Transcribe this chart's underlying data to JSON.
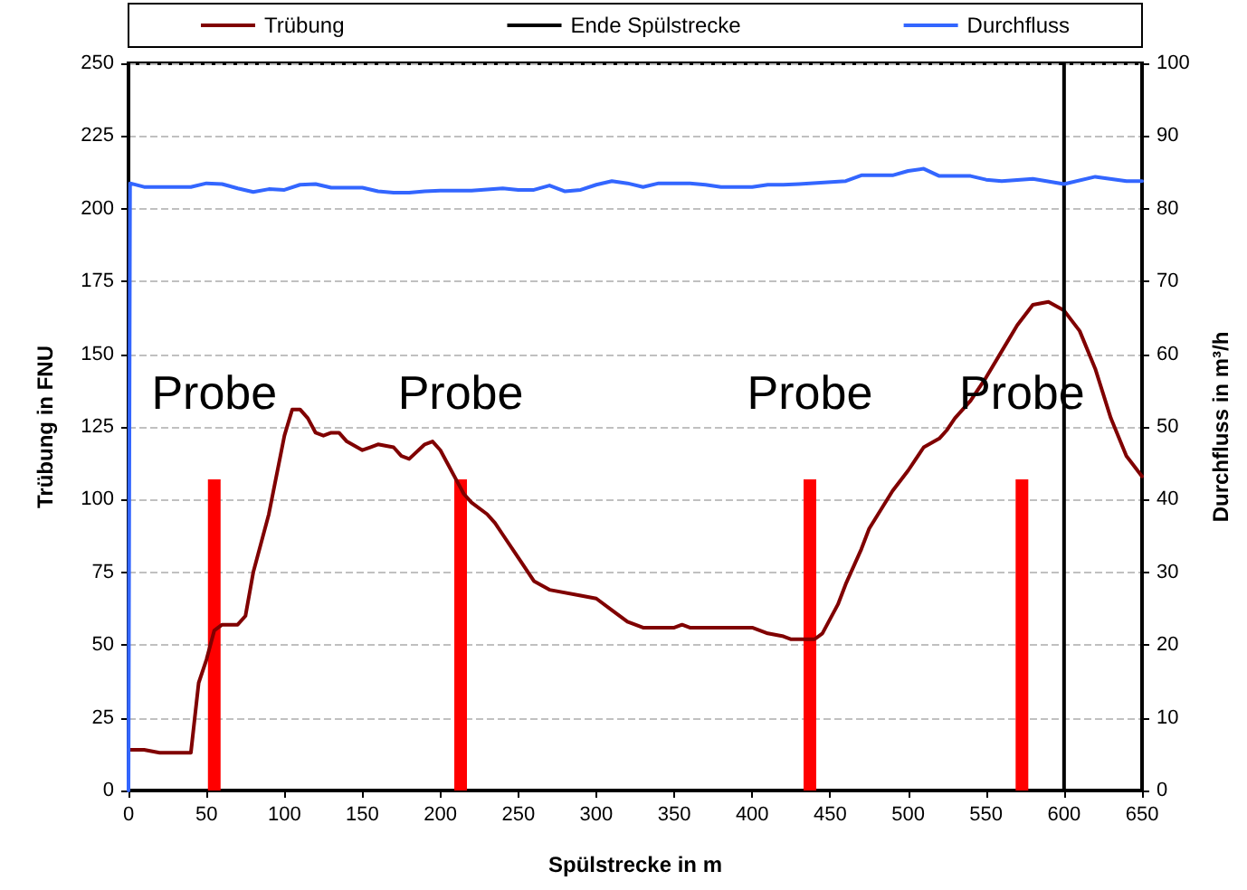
{
  "chart_data": {
    "type": "line",
    "xlabel": "Spülstrecke in m",
    "ylabel": "Trübung in FNU",
    "y2label": "Durchfluss in m³/h",
    "xlim": [
      0,
      650
    ],
    "xticks": [
      0,
      50,
      100,
      150,
      200,
      250,
      300,
      350,
      400,
      450,
      500,
      550,
      600,
      650
    ],
    "ylim": [
      0,
      250
    ],
    "yticks": [
      0,
      25,
      50,
      75,
      100,
      125,
      150,
      175,
      200,
      225,
      250
    ],
    "y2lim": [
      0,
      100
    ],
    "y2ticks": [
      0,
      10,
      20,
      30,
      40,
      50,
      60,
      70,
      80,
      90,
      100
    ],
    "grid": "y",
    "legend": "top",
    "marker": "none",
    "line_style": "solid",
    "series": [
      {
        "name": "Trübung",
        "color": "#800000",
        "x": [
          0,
          10,
          20,
          40,
          45,
          50,
          55,
          60,
          70,
          75,
          80,
          90,
          100,
          105,
          110,
          115,
          120,
          125,
          130,
          135,
          140,
          150,
          155,
          160,
          170,
          175,
          180,
          190,
          195,
          200,
          205,
          210,
          215,
          220,
          230,
          235,
          240,
          250,
          260,
          270,
          290,
          300,
          310,
          320,
          330,
          350,
          355,
          360,
          400,
          410,
          420,
          425,
          430,
          440,
          445,
          455,
          460,
          470,
          475,
          490,
          500,
          510,
          520,
          525,
          530,
          540,
          550,
          560,
          570,
          580,
          590,
          600,
          610,
          620,
          630,
          640,
          650
        ],
        "values": [
          14,
          14,
          13,
          13,
          37,
          45,
          55,
          57,
          57,
          60,
          75,
          95,
          122,
          131,
          131,
          128,
          123,
          122,
          123,
          123,
          120,
          117,
          118,
          119,
          118,
          115,
          114,
          119,
          120,
          117,
          112,
          107,
          102,
          99,
          95,
          92,
          88,
          80,
          72,
          69,
          67,
          66,
          62,
          58,
          56,
          56,
          57,
          56,
          56,
          54,
          53,
          52,
          52,
          52,
          54,
          64,
          71,
          83,
          90,
          103,
          110,
          118,
          121,
          124,
          128,
          134,
          142,
          151,
          160,
          167,
          168,
          165,
          158,
          145,
          128,
          115,
          108
        ]
      },
      {
        "name": "Ende Spülstrecke",
        "color": "#000000",
        "x": [
          600,
          600
        ],
        "values": [
          0,
          250
        ]
      },
      {
        "name": "Durchfluss",
        "color": "#3366ff",
        "axis": "y2",
        "x": [
          0,
          1,
          10,
          20,
          40,
          50,
          60,
          70,
          80,
          90,
          100,
          110,
          120,
          130,
          140,
          150,
          160,
          170,
          180,
          190,
          200,
          220,
          240,
          250,
          260,
          270,
          280,
          290,
          300,
          310,
          320,
          330,
          340,
          360,
          370,
          380,
          400,
          410,
          420,
          430,
          460,
          470,
          490,
          500,
          510,
          520,
          540,
          550,
          560,
          580,
          600,
          620,
          640,
          650
        ],
        "values": [
          0,
          83.5,
          83,
          83,
          83,
          83.5,
          83.4,
          82.8,
          82.3,
          82.7,
          82.6,
          83.3,
          83.4,
          82.9,
          82.9,
          82.9,
          82.4,
          82.2,
          82.2,
          82.4,
          82.5,
          82.5,
          82.8,
          82.6,
          82.6,
          83.2,
          82.4,
          82.6,
          83.3,
          83.8,
          83.5,
          83,
          83.5,
          83.5,
          83.3,
          83,
          83,
          83.3,
          83.3,
          83.4,
          83.8,
          84.6,
          84.6,
          85.2,
          85.5,
          84.5,
          84.5,
          84,
          83.8,
          84.1,
          83.4,
          84.4,
          83.8,
          83.8
        ]
      },
      {
        "type": "bar",
        "color": "#ff0000",
        "x": [
          55,
          213,
          437,
          573
        ],
        "values": [
          107,
          107,
          107,
          107
        ]
      }
    ],
    "annotations": [
      {
        "text": "Probe",
        "x": 55,
        "y": 107
      },
      {
        "text": "Probe",
        "x": 213,
        "y": 107
      },
      {
        "text": "Probe",
        "x": 437,
        "y": 107
      },
      {
        "text": "Probe",
        "x": 573,
        "y": 107
      }
    ]
  }
}
